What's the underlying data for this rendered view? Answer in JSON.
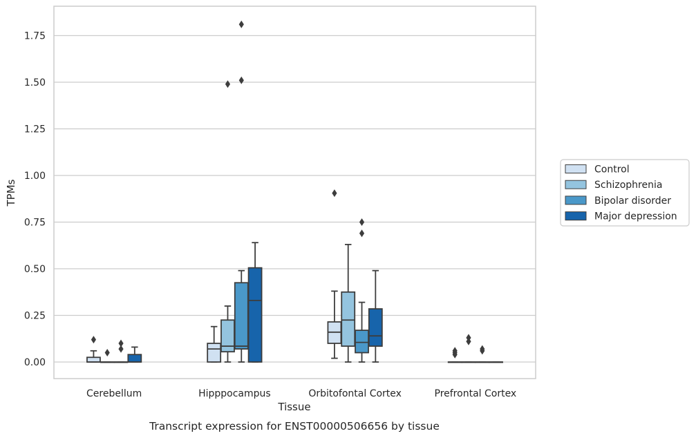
{
  "chart_data": {
    "type": "box",
    "xlabel": "Tissue",
    "ylabel": "TPMs",
    "caption": "Transcript expression for ENST00000506656 by tissue",
    "ylim": [
      -0.09,
      1.91
    ],
    "yticks": [
      "0.00",
      "0.25",
      "0.50",
      "0.75",
      "1.00",
      "1.25",
      "1.50",
      "1.75"
    ],
    "grid": "horizontal",
    "legend_position": "right",
    "categories": [
      "Cerebellum",
      "Hipppocampus",
      "Orbitofontal Cortex",
      "Prefrontal Cortex"
    ],
    "series": [
      {
        "name": "Control",
        "color": "#d0e1f2",
        "boxes": [
          {
            "q1": 0,
            "median": 0,
            "q3": 0.025,
            "whislo": 0,
            "whishi": 0.06,
            "fliers": [
              0.12
            ]
          },
          {
            "q1": 0,
            "median": 0.07,
            "q3": 0.1,
            "whislo": 0,
            "whishi": 0.19,
            "fliers": []
          },
          {
            "q1": 0.1,
            "median": 0.16,
            "q3": 0.215,
            "whislo": 0.02,
            "whishi": 0.38,
            "fliers": [
              0.905
            ]
          },
          {
            "q1": 0,
            "median": 0,
            "q3": 0,
            "whislo": 0,
            "whishi": 0,
            "fliers": [
              0.04,
              0.05,
              0.06
            ]
          }
        ]
      },
      {
        "name": "Schizophrenia",
        "color": "#94c4df",
        "boxes": [
          {
            "q1": 0,
            "median": 0,
            "q3": 0,
            "whislo": 0,
            "whishi": 0,
            "fliers": [
              0.05
            ]
          },
          {
            "q1": 0.055,
            "median": 0.085,
            "q3": 0.225,
            "whislo": 0,
            "whishi": 0.3,
            "fliers": [
              1.49
            ]
          },
          {
            "q1": 0.085,
            "median": 0.225,
            "q3": 0.375,
            "whislo": 0,
            "whishi": 0.63,
            "fliers": []
          },
          {
            "q1": 0,
            "median": 0,
            "q3": 0,
            "whislo": 0,
            "whishi": 0,
            "fliers": [
              0.11,
              0.13
            ]
          }
        ]
      },
      {
        "name": "Bipolar disorder",
        "color": "#4a98c9",
        "boxes": [
          {
            "q1": 0,
            "median": 0,
            "q3": 0,
            "whislo": 0,
            "whishi": 0,
            "fliers": [
              0.07,
              0.1
            ]
          },
          {
            "q1": 0.07,
            "median": 0.085,
            "q3": 0.425,
            "whislo": 0,
            "whishi": 0.49,
            "fliers": [
              1.81,
              1.51
            ]
          },
          {
            "q1": 0.05,
            "median": 0.105,
            "q3": 0.17,
            "whislo": 0,
            "whishi": 0.32,
            "fliers": [
              0.69,
              0.75
            ]
          },
          {
            "q1": 0,
            "median": 0,
            "q3": 0,
            "whislo": 0,
            "whishi": 0,
            "fliers": [
              0.06,
              0.07
            ]
          }
        ]
      },
      {
        "name": "Major depression",
        "color": "#1764ab",
        "boxes": [
          {
            "q1": 0,
            "median": 0,
            "q3": 0.04,
            "whislo": 0,
            "whishi": 0.08,
            "fliers": []
          },
          {
            "q1": 0,
            "median": 0.33,
            "q3": 0.505,
            "whislo": 0,
            "whishi": 0.64,
            "fliers": []
          },
          {
            "q1": 0.085,
            "median": 0.14,
            "q3": 0.285,
            "whislo": 0,
            "whishi": 0.49,
            "fliers": []
          },
          {
            "q1": 0,
            "median": 0,
            "q3": 0,
            "whislo": 0,
            "whishi": 0,
            "fliers": []
          }
        ]
      }
    ]
  }
}
